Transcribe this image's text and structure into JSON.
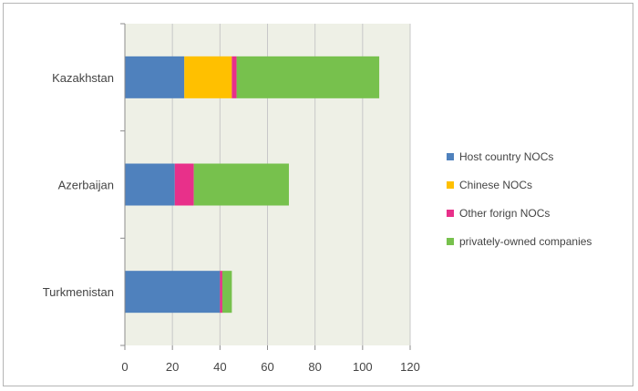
{
  "chart_data": {
    "type": "bar",
    "orientation": "horizontal",
    "stacked": true,
    "categories": [
      "Kazakhstan",
      "Azerbaijan",
      "Turkmenistan"
    ],
    "series": [
      {
        "name": "Host country NOCs",
        "color": "#4f81bd",
        "values": [
          25,
          21,
          40
        ]
      },
      {
        "name": "Chinese NOCs",
        "color": "#ffc000",
        "values": [
          20,
          0,
          0
        ]
      },
      {
        "name": "Other forign NOCs",
        "color": "#e8308a",
        "values": [
          2,
          8,
          1
        ]
      },
      {
        "name": "privately-owned companies",
        "color": "#77c14d",
        "values": [
          60,
          40,
          4
        ]
      }
    ],
    "xlim": [
      0,
      120
    ],
    "xticks": [
      0,
      20,
      40,
      60,
      80,
      100,
      120
    ],
    "grid": "vertical",
    "legend_position": "right",
    "plot_background": "#eef0e6",
    "title": "",
    "xlabel": "",
    "ylabel": ""
  }
}
